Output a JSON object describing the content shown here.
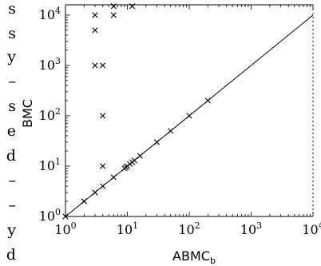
{
  "margin_text": {
    "fragments": [
      "s",
      "s",
      "y",
      "–",
      "s",
      "e",
      "d",
      "–",
      "–",
      "y",
      "d"
    ]
  },
  "chart_data": {
    "type": "scatter",
    "title": "",
    "xlabel": "ABMC",
    "xlabel_subscript": "b",
    "ylabel": "BMC",
    "xscale": "log",
    "yscale": "log",
    "xlim": [
      1,
      10000
    ],
    "ylim": [
      1,
      16000
    ],
    "grid": false,
    "legend": "none",
    "marker": "x",
    "reference_line": "y = x",
    "x_ticks": [
      {
        "base": "10",
        "exp": "0",
        "value": 1
      },
      {
        "base": "10",
        "exp": "1",
        "value": 10
      },
      {
        "base": "10",
        "exp": "2",
        "value": 100
      },
      {
        "base": "10",
        "exp": "3",
        "value": 1000
      },
      {
        "base": "10",
        "exp": "4",
        "value": 10000
      }
    ],
    "y_ticks": [
      {
        "base": "10",
        "exp": "0",
        "value": 1
      },
      {
        "base": "10",
        "exp": "1",
        "value": 10
      },
      {
        "base": "10",
        "exp": "2",
        "value": 100
      },
      {
        "base": "10",
        "exp": "3",
        "value": 1000
      },
      {
        "base": "10",
        "exp": "4",
        "value": 10000
      }
    ],
    "points": [
      {
        "x": 1,
        "y": 1
      },
      {
        "x": 2,
        "y": 2
      },
      {
        "x": 2,
        "y": 2
      },
      {
        "x": 3,
        "y": 3
      },
      {
        "x": 3,
        "y": 3
      },
      {
        "x": 4,
        "y": 4
      },
      {
        "x": 6,
        "y": 6
      },
      {
        "x": 9,
        "y": 9
      },
      {
        "x": 9.5,
        "y": 9.5
      },
      {
        "x": 10,
        "y": 10
      },
      {
        "x": 11,
        "y": 11
      },
      {
        "x": 12,
        "y": 12
      },
      {
        "x": 13,
        "y": 13
      },
      {
        "x": 16,
        "y": 16
      },
      {
        "x": 30,
        "y": 30
      },
      {
        "x": 50,
        "y": 50
      },
      {
        "x": 100,
        "y": 100
      },
      {
        "x": 200,
        "y": 200
      },
      {
        "x": 4,
        "y": 10
      },
      {
        "x": 4,
        "y": 100
      },
      {
        "x": 3,
        "y": 1000
      },
      {
        "x": 4,
        "y": 1000
      },
      {
        "x": 3,
        "y": 5000
      },
      {
        "x": 3,
        "y": 10000
      },
      {
        "x": 6,
        "y": 10000
      },
      {
        "x": 6,
        "y": 15000
      },
      {
        "x": 12,
        "y": 15000
      }
    ]
  }
}
